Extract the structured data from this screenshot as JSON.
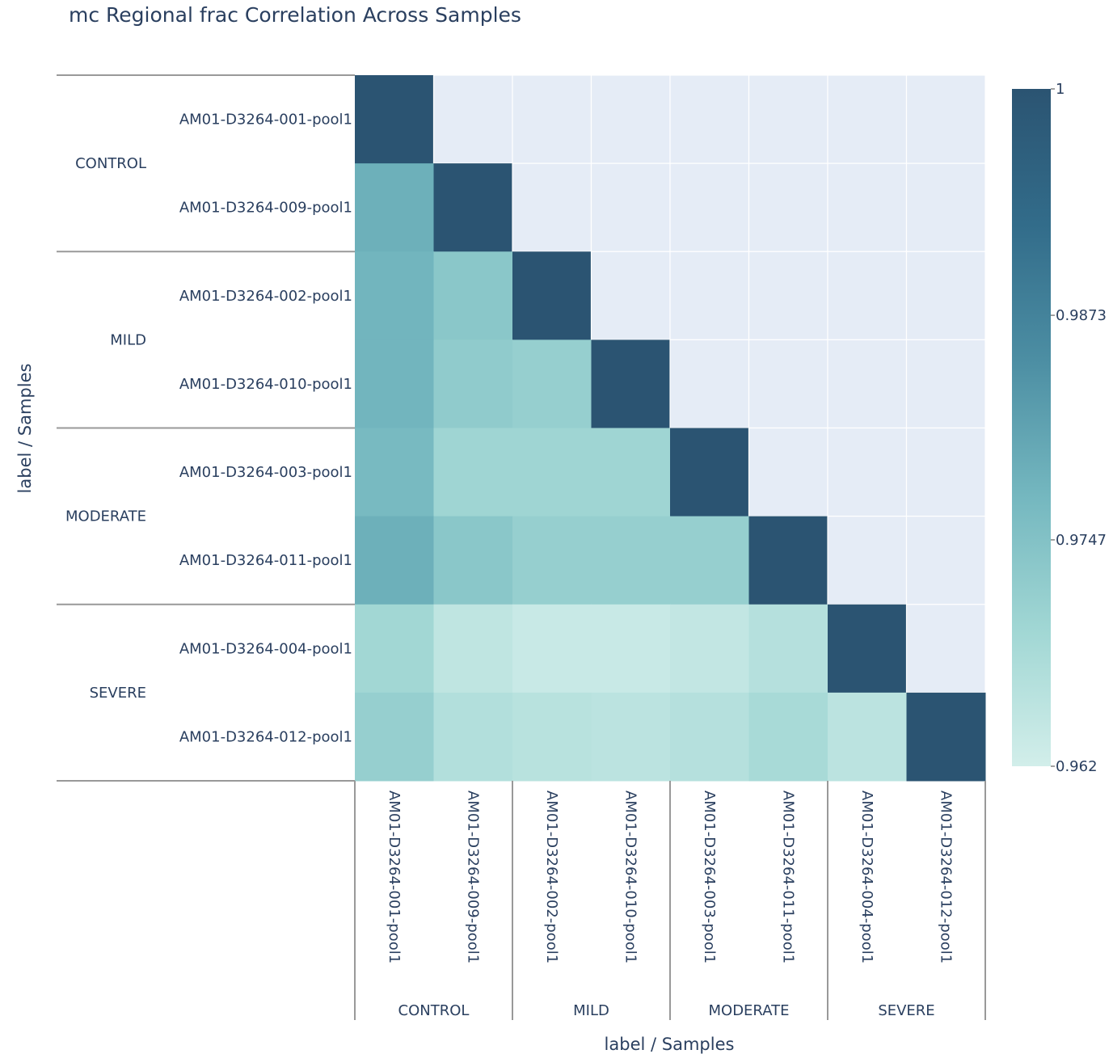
{
  "chart_data": {
    "type": "heatmap",
    "title": "mc Regional frac Correlation Across Samples",
    "xlabel": "label / Samples",
    "ylabel": "label / Samples",
    "samples": [
      "AM01-D3264-001-pool1",
      "AM01-D3264-009-pool1",
      "AM01-D3264-002-pool1",
      "AM01-D3264-010-pool1",
      "AM01-D3264-003-pool1",
      "AM01-D3264-011-pool1",
      "AM01-D3264-004-pool1",
      "AM01-D3264-012-pool1"
    ],
    "groups": [
      {
        "name": "CONTROL",
        "members": [
          0,
          1
        ]
      },
      {
        "name": "MILD",
        "members": [
          2,
          3
        ]
      },
      {
        "name": "MODERATE",
        "members": [
          4,
          5
        ]
      },
      {
        "name": "SEVERE",
        "members": [
          6,
          7
        ]
      }
    ],
    "matrix": [
      [
        1,
        null,
        null,
        null,
        null,
        null,
        null,
        null
      ],
      [
        0.9785,
        1,
        null,
        null,
        null,
        null,
        null,
        null
      ],
      [
        0.9775,
        0.9735,
        1,
        null,
        null,
        null,
        null,
        null
      ],
      [
        0.9775,
        0.9725,
        0.9715,
        1,
        null,
        null,
        null,
        null
      ],
      [
        0.9765,
        0.97,
        0.97,
        0.97,
        1,
        null,
        null,
        null
      ],
      [
        0.9785,
        0.9735,
        0.9715,
        0.9715,
        0.9715,
        1,
        null,
        null
      ],
      [
        0.9695,
        0.965,
        0.9635,
        0.9635,
        0.9645,
        0.9665,
        1,
        null
      ],
      [
        0.9715,
        0.967,
        0.966,
        0.9655,
        0.9665,
        0.9685,
        0.9655,
        1
      ]
    ],
    "colorscale": {
      "min": 0.962,
      "max": 1,
      "stops": [
        "#d2eeea",
        "#a1d7d4",
        "#74b7bf",
        "#4c8ea3",
        "#326c8a",
        "#2b5472"
      ],
      "tick_values": [
        1,
        0.9873,
        0.9747,
        0.962
      ],
      "tick_labels": [
        "1",
        "0.9873",
        "0.9747",
        "0.962"
      ]
    },
    "empty_cell_color": "#e5ecf6"
  }
}
